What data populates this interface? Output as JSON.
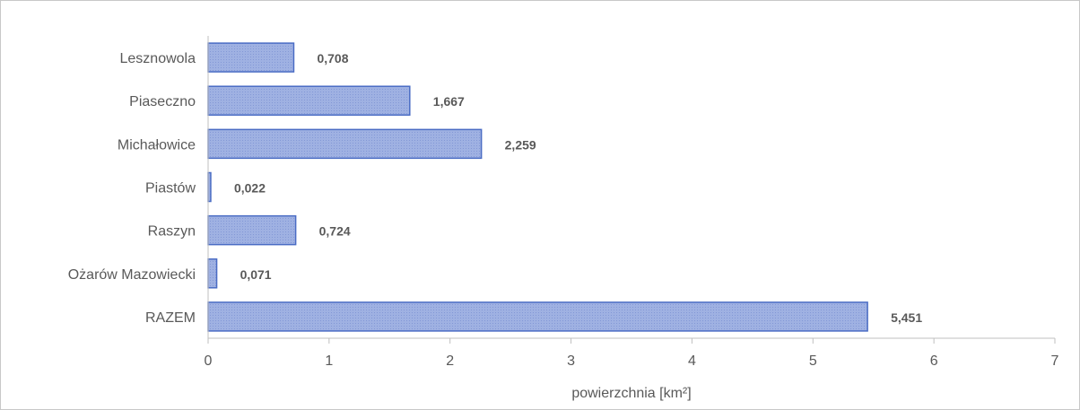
{
  "chart_data": {
    "type": "bar",
    "orientation": "horizontal",
    "categories": [
      "Lesznowola",
      "Piaseczno",
      "Michałowice",
      "Piastów",
      "Raszyn",
      "Ożarów Mazowiecki",
      "RAZEM"
    ],
    "values": [
      0.708,
      1.667,
      2.259,
      0.022,
      0.724,
      0.071,
      5.451
    ],
    "value_labels": [
      "0,708",
      "1,667",
      "2,259",
      "0,022",
      "0,724",
      "0,071",
      "5,451"
    ],
    "xlabel": "powierzchnia [km²]",
    "ylabel": "",
    "xlim": [
      0,
      7
    ],
    "xticks": [
      "0",
      "1",
      "2",
      "3",
      "4",
      "5",
      "6",
      "7"
    ],
    "grid": false,
    "colors": {
      "bar_fill": "#9aaee0",
      "bar_stroke": "#4a6cc4",
      "axis": "#bfbfbf",
      "text": "#595959"
    }
  }
}
